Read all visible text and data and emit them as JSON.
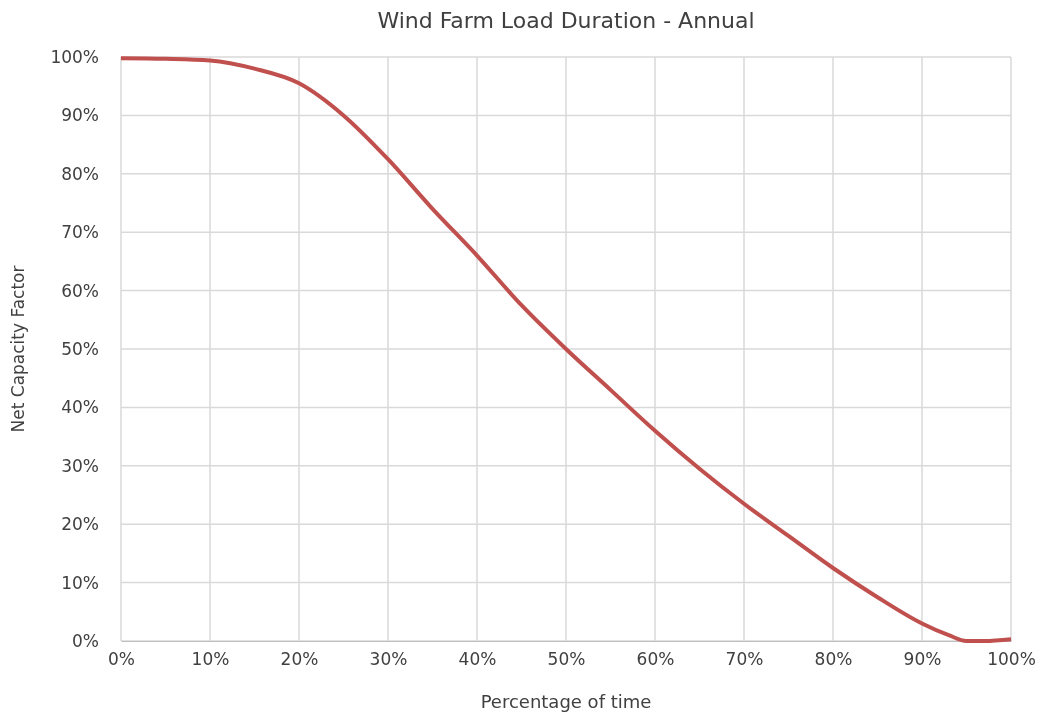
{
  "chart_data": {
    "type": "line",
    "title": "Wind Farm Load Duration - Annual",
    "xlabel": "Percentage of time",
    "ylabel": "Net Capacity Factor",
    "x": [
      0,
      5,
      10,
      15,
      20,
      25,
      30,
      35,
      40,
      45,
      50,
      55,
      60,
      65,
      70,
      75,
      80,
      85,
      90,
      93,
      95,
      97,
      100
    ],
    "series": [
      {
        "color": "#c0504d",
        "values": [
          99.8,
          99.7,
          99.4,
          98,
          95.5,
          90,
          82.5,
          74,
          66,
          57.5,
          50,
          43,
          36,
          29.5,
          23.5,
          18,
          12.5,
          7.5,
          3,
          1,
          0,
          0,
          0.3
        ]
      }
    ],
    "xlim": [
      0,
      100
    ],
    "ylim": [
      0,
      100
    ],
    "xticks": [
      {
        "value": 0,
        "label": "0%"
      },
      {
        "value": 10,
        "label": "10%"
      },
      {
        "value": 20,
        "label": "20%"
      },
      {
        "value": 30,
        "label": "30%"
      },
      {
        "value": 40,
        "label": "40%"
      },
      {
        "value": 50,
        "label": "50%"
      },
      {
        "value": 60,
        "label": "60%"
      },
      {
        "value": 70,
        "label": "70%"
      },
      {
        "value": 80,
        "label": "80%"
      },
      {
        "value": 90,
        "label": "90%"
      },
      {
        "value": 100,
        "label": "100%"
      }
    ],
    "yticks": [
      {
        "value": 0,
        "label": "0%"
      },
      {
        "value": 10,
        "label": "10%"
      },
      {
        "value": 20,
        "label": "20%"
      },
      {
        "value": 30,
        "label": "30%"
      },
      {
        "value": 40,
        "label": "40%"
      },
      {
        "value": 50,
        "label": "50%"
      },
      {
        "value": 60,
        "label": "60%"
      },
      {
        "value": 70,
        "label": "70%"
      },
      {
        "value": 80,
        "label": "80%"
      },
      {
        "value": 90,
        "label": "90%"
      },
      {
        "value": 100,
        "label": "100%"
      }
    ],
    "grid": true,
    "marker": "none",
    "line_style": "solid"
  }
}
